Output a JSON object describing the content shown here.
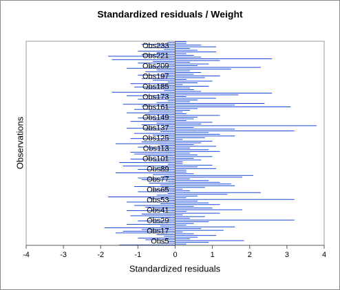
{
  "chart_data": {
    "type": "hbar",
    "title": "Standardized residuals / Weight",
    "x_label": "Standardized residuals",
    "y_label": "Observations",
    "color": "#0a3fd6",
    "xlim": [
      -4,
      4
    ],
    "xticks": [
      -4,
      -3,
      -2,
      -1,
      0,
      1,
      2,
      3,
      4
    ],
    "categories": [
      null,
      null,
      null,
      null,
      "Obs5",
      null,
      null,
      null,
      null,
      null,
      null,
      null,
      null,
      null,
      null,
      null,
      "Obs17",
      null,
      null,
      null,
      null,
      null,
      null,
      null,
      null,
      null,
      null,
      null,
      "Obs29",
      null,
      null,
      null,
      null,
      null,
      null,
      null,
      null,
      null,
      null,
      null,
      "Obs41",
      null,
      null,
      null,
      null,
      null,
      null,
      null,
      null,
      null,
      null,
      null,
      "Obs53",
      null,
      null,
      null,
      null,
      null,
      null,
      null,
      null,
      null,
      null,
      null,
      "Obs65",
      null,
      null,
      null,
      null,
      null,
      null,
      null,
      null,
      null,
      null,
      null,
      "Obs77",
      null,
      null,
      null,
      null,
      null,
      null,
      null,
      null,
      null,
      null,
      null,
      "Obs89",
      null,
      null,
      null,
      null,
      null,
      null,
      null,
      null,
      null,
      null,
      null,
      "Obs101",
      null,
      null,
      null,
      null,
      null,
      null,
      null,
      null,
      null,
      null,
      null,
      "Obs113",
      null,
      null,
      null,
      null,
      null,
      null,
      null,
      null,
      null,
      null,
      null,
      "Obs125",
      null,
      null,
      null,
      null,
      null,
      null,
      null,
      null,
      null,
      null,
      null,
      "Obs137",
      null,
      null,
      null,
      null,
      null,
      null,
      null,
      null,
      null,
      null,
      null,
      "Obs149",
      null,
      null,
      null,
      null,
      null,
      null,
      null,
      null,
      null,
      null,
      null,
      "Obs161",
      null,
      null,
      null,
      null,
      null,
      null,
      null,
      null,
      null,
      null,
      null,
      "Obs173",
      null,
      null,
      null,
      null,
      null,
      null,
      null,
      null,
      null,
      null,
      null,
      "Obs185",
      null,
      null,
      null,
      null,
      null,
      null,
      null,
      null,
      null,
      null,
      null,
      "Obs197",
      null,
      null,
      null,
      null,
      null,
      null,
      null,
      null,
      null,
      null,
      null,
      "Obs209",
      null,
      null,
      null,
      null,
      null,
      null,
      null,
      null,
      null,
      null,
      null,
      "Obs221",
      null,
      null,
      null,
      null,
      null,
      null,
      null,
      null,
      null,
      null,
      null,
      "Obs233",
      null,
      null,
      null,
      null,
      null
    ],
    "values": [
      -1.5,
      0.3,
      -0.4,
      0.9,
      -0.2,
      1.85,
      -0.8,
      0.4,
      -1.0,
      0.6,
      -0.3,
      1.1,
      -0.5,
      0.5,
      -1.6,
      0.2,
      -1.4,
      1.3,
      -0.9,
      0.7,
      -1.9,
      1.6,
      -0.4,
      0.3,
      -1.3,
      0.5,
      -0.6,
      0.9,
      -1.0,
      3.2,
      -0.2,
      0.4,
      -0.7,
      0.8,
      -1.2,
      0.2,
      -0.9,
      1.2,
      -0.3,
      0.3,
      -1.3,
      1.8,
      -0.6,
      1.0,
      -0.8,
      0.5,
      -1.1,
      1.2,
      -0.4,
      0.9,
      -1.3,
      0.6,
      -0.2,
      3.2,
      -0.7,
      0.3,
      -1.8,
      0.6,
      -0.5,
      1.4,
      -0.2,
      2.3,
      -1.0,
      0.4,
      -0.6,
      0.2,
      -0.3,
      0.8,
      -1.1,
      1.6,
      -0.4,
      1.5,
      -0.7,
      1.2,
      -0.2,
      0.9,
      -0.9,
      0.4,
      -1.0,
      1.8,
      -0.3,
      2.1,
      -0.6,
      0.5,
      -1.6,
      0.3,
      -0.4,
      0.3,
      -1.0,
      1.1,
      -0.5,
      0.6,
      -1.4,
      1.0,
      -0.2,
      0.2,
      -1.5,
      0.2,
      -0.6,
      0.7,
      -1.2,
      0.5,
      -0.3,
      1.0,
      -0.8,
      0.6,
      -1.1,
      0.4,
      -1.2,
      1.2,
      -0.3,
      0.9,
      -0.7,
      0.4,
      -1.0,
      1.1,
      -0.4,
      0.5,
      -1.6,
      0.7,
      -0.9,
      1.0,
      -0.5,
      0.2,
      -1.2,
      0.8,
      -0.2,
      1.6,
      -0.6,
      1.2,
      -1.1,
      0.9,
      -0.4,
      3.2,
      -0.8,
      1.6,
      -1.3,
      0.5,
      -0.3,
      3.8,
      -0.9,
      0.7,
      -0.5,
      1.0,
      -1.2,
      0.3,
      -0.6,
      0.5,
      -1.0,
      0.6,
      -0.4,
      1.2,
      -0.8,
      0.3,
      -1.3,
      0.2,
      -0.7,
      0.4,
      -1.1,
      0.6,
      -0.3,
      3.1,
      -0.9,
      1.6,
      -1.4,
      2.4,
      -0.5,
      0.4,
      -0.2,
      0.6,
      -1.0,
      1.1,
      -0.6,
      0.3,
      -1.3,
      1.7,
      -0.4,
      2.6,
      -1.7,
      0.7,
      -0.3,
      0.5,
      -0.8,
      0.4,
      -1.1,
      0.9,
      -0.5,
      0.2,
      -1.2,
      0.6,
      -0.2,
      1.0,
      -0.6,
      0.3,
      -0.9,
      0.8,
      -0.4,
      1.2,
      -1.0,
      0.5,
      -0.3,
      0.7,
      -0.8,
      0.4,
      -0.5,
      1.5,
      -1.3,
      2.3,
      -0.7,
      0.6,
      -0.2,
      0.9,
      -1.0,
      0.4,
      -0.6,
      1.2,
      -1.7,
      2.6,
      -0.4,
      0.7,
      -1.8,
      0.5,
      -0.9,
      0.3,
      -0.5,
      1.1,
      -1.0,
      0.6,
      -0.3,
      0.4,
      -0.8,
      1.1,
      -0.5,
      0.7,
      -0.9,
      0.3,
      -0.2,
      0.3
    ]
  }
}
